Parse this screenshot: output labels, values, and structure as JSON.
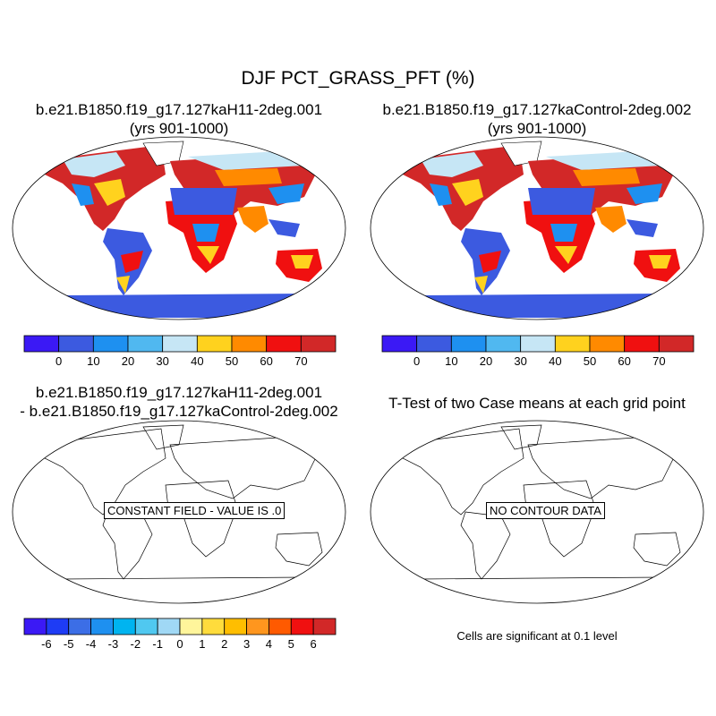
{
  "title": "DJF PCT_GRASS_PFT (%)",
  "panels": [
    {
      "title_line1": "b.e21.B1850.f19_g17.127kaH11-2deg.001",
      "title_line2": "(yrs 901-1000)"
    },
    {
      "title_line1": "b.e21.B1850.f19_g17.127kaControl-2deg.002",
      "title_line2": "(yrs 901-1000)"
    },
    {
      "title_line1": "b.e21.B1850.f19_g17.127kaH11-2deg.001",
      "title_line2": "- b.e21.B1850.f19_g17.127kaControl-2deg.002",
      "note": "CONSTANT FIELD - VALUE IS .0"
    },
    {
      "title_line1": "T-Test of two Case means at each grid point",
      "note": "NO CONTOUR DATA"
    }
  ],
  "significance_note": "Cells are significant at 0.1 level",
  "chart_data": [
    {
      "type": "heatmap",
      "panel": "case",
      "colorbar": {
        "labels": [
          "0",
          "10",
          "20",
          "30",
          "40",
          "50",
          "60",
          "70"
        ],
        "colors": [
          "#3b19f5",
          "#3c5ae0",
          "#1e90f0",
          "#50b8f0",
          "#c6e6f5",
          "#ffd21e",
          "#ff8a00",
          "#f01010",
          "#d22828"
        ],
        "range": [
          0,
          70
        ]
      },
      "land_color_zones": [
        {
          "region": "Antarctica",
          "level": "0-10"
        },
        {
          "region": "Sahara",
          "level": "0-10"
        },
        {
          "region": "Sahel",
          "level": "60+"
        },
        {
          "region": "Amazon",
          "level": "0-10"
        },
        {
          "region": "Central Asia",
          "level": "40-70"
        }
      ]
    },
    {
      "type": "heatmap",
      "panel": "control",
      "colorbar": {
        "labels": [
          "0",
          "10",
          "20",
          "30",
          "40",
          "50",
          "60",
          "70"
        ],
        "colors": [
          "#3b19f5",
          "#3c5ae0",
          "#1e90f0",
          "#50b8f0",
          "#c6e6f5",
          "#ffd21e",
          "#ff8a00",
          "#f01010",
          "#d22828"
        ],
        "range": [
          0,
          70
        ]
      }
    },
    {
      "type": "heatmap",
      "panel": "difference",
      "constant_value": 0,
      "colorbar": {
        "labels": [
          "-6",
          "-5",
          "-4",
          "-3",
          "-2",
          "-1",
          "0",
          "1",
          "2",
          "3",
          "4",
          "5",
          "6"
        ],
        "colors": [
          "#3b19f5",
          "#1e3cf5",
          "#3c6ee6",
          "#1e90f0",
          "#00b4f0",
          "#50c8f0",
          "#a0d8f5",
          "#fff59b",
          "#ffdc3c",
          "#ffbe00",
          "#ff961e",
          "#ff5a00",
          "#f01010",
          "#d22828"
        ],
        "range": [
          -6,
          6
        ]
      }
    },
    {
      "type": "heatmap",
      "panel": "t-test",
      "has_data": false
    }
  ]
}
